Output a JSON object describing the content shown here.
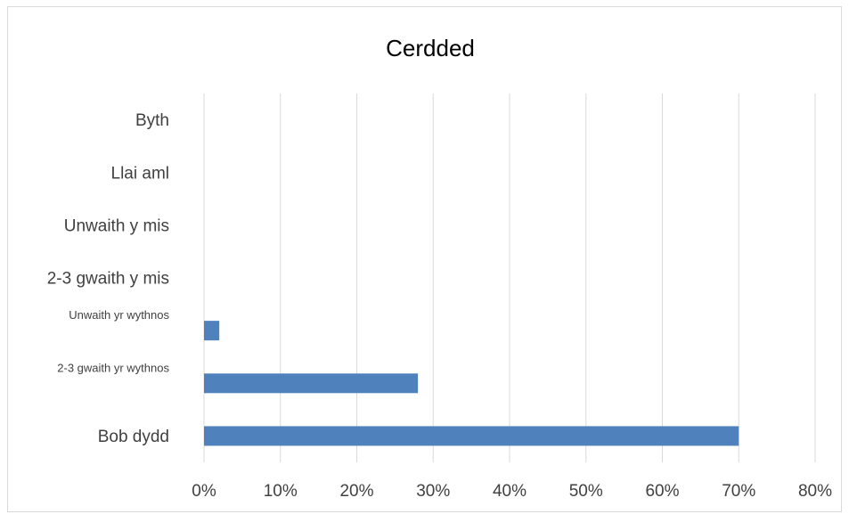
{
  "chart_data": {
    "type": "bar",
    "orientation": "horizontal",
    "title": "Cerdded",
    "categories": [
      "Bob dydd",
      "2-3 gwaith yr wythnos",
      "Unwaith yr wythnos",
      "2-3 gwaith y mis",
      "Unwaith y mis",
      "Llai aml",
      "Byth"
    ],
    "values": [
      70,
      28,
      2,
      0,
      0,
      0,
      0
    ],
    "unit": "%",
    "xlim": [
      0,
      80
    ],
    "xticks": [
      "0%",
      "10%",
      "20%",
      "30%",
      "40%",
      "50%",
      "60%",
      "70%",
      "80%"
    ],
    "grid": true,
    "legend": "none",
    "colors": {
      "bar": "#4F81BD",
      "grid": "#d9d9d9",
      "text": "#404040"
    }
  }
}
